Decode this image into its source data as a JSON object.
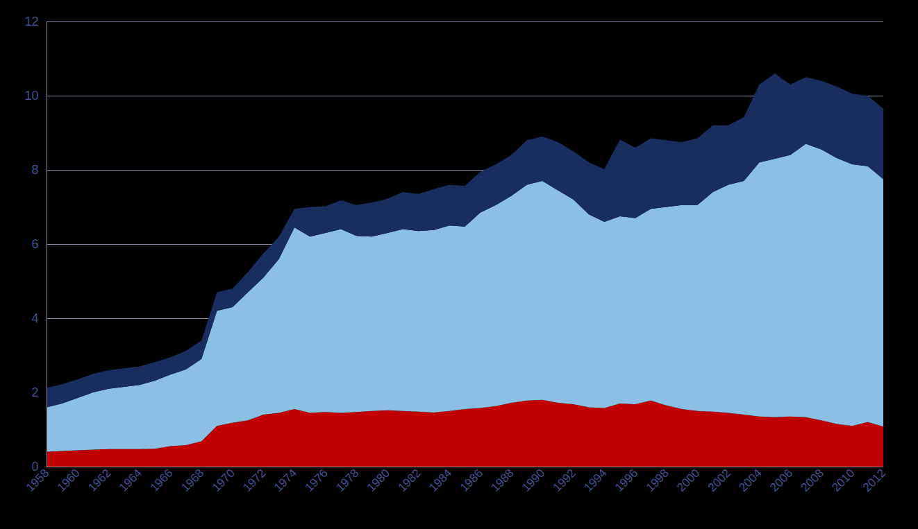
{
  "chart_data": {
    "type": "area",
    "stacked": true,
    "x": [
      1958,
      1959,
      1960,
      1961,
      1962,
      1963,
      1964,
      1965,
      1966,
      1967,
      1968,
      1969,
      1970,
      1971,
      1972,
      1973,
      1974,
      1975,
      1976,
      1977,
      1978,
      1979,
      1980,
      1981,
      1982,
      1983,
      1984,
      1985,
      1986,
      1987,
      1988,
      1989,
      1990,
      1991,
      1992,
      1993,
      1994,
      1995,
      1996,
      1997,
      1998,
      1999,
      2000,
      2001,
      2002,
      2003,
      2004,
      2005,
      2006,
      2007,
      2008,
      2009,
      2010,
      2011,
      2012
    ],
    "series": [
      {
        "color": "#c00000",
        "values": [
          0.4,
          0.42,
          0.44,
          0.46,
          0.47,
          0.47,
          0.47,
          0.48,
          0.55,
          0.58,
          0.68,
          1.1,
          1.18,
          1.25,
          1.4,
          1.45,
          1.55,
          1.45,
          1.47,
          1.45,
          1.47,
          1.5,
          1.52,
          1.5,
          1.48,
          1.46,
          1.5,
          1.55,
          1.58,
          1.63,
          1.72,
          1.78,
          1.8,
          1.72,
          1.68,
          1.6,
          1.58,
          1.7,
          1.68,
          1.78,
          1.65,
          1.55,
          1.5,
          1.48,
          1.45,
          1.4,
          1.35,
          1.33,
          1.35,
          1.33,
          1.25,
          1.15,
          1.1,
          1.2,
          1.08
        ]
      },
      {
        "color": "#8bc0e4",
        "values": [
          1.2,
          1.28,
          1.41,
          1.54,
          1.63,
          1.68,
          1.73,
          1.84,
          1.93,
          2.04,
          2.22,
          3.1,
          3.12,
          3.45,
          3.7,
          4.15,
          4.9,
          4.75,
          4.83,
          4.95,
          4.75,
          4.7,
          4.78,
          4.9,
          4.87,
          4.92,
          5.0,
          4.92,
          5.27,
          5.42,
          5.58,
          5.82,
          5.9,
          5.73,
          5.52,
          5.2,
          5.02,
          5.05,
          5.02,
          5.17,
          5.35,
          5.5,
          5.55,
          5.92,
          6.15,
          6.3,
          6.85,
          6.97,
          7.05,
          7.37,
          7.3,
          7.17,
          7.05,
          6.9,
          6.67
        ]
      },
      {
        "color": "#1a2d5f",
        "values": [
          0.52,
          0.52,
          0.5,
          0.5,
          0.5,
          0.5,
          0.5,
          0.5,
          0.47,
          0.5,
          0.5,
          0.5,
          0.5,
          0.55,
          0.65,
          0.6,
          0.5,
          0.8,
          0.72,
          0.78,
          0.83,
          0.92,
          0.92,
          1.0,
          1.0,
          1.1,
          1.1,
          1.1,
          1.1,
          1.1,
          1.1,
          1.2,
          1.2,
          1.3,
          1.3,
          1.4,
          1.42,
          2.07,
          1.9,
          1.9,
          1.8,
          1.7,
          1.8,
          1.8,
          1.6,
          1.72,
          2.1,
          2.3,
          1.9,
          1.8,
          1.85,
          1.93,
          1.9,
          1.9,
          1.9
        ]
      }
    ],
    "xlim": [
      1958,
      2012
    ],
    "xticks": [
      1958,
      1960,
      1962,
      1964,
      1966,
      1968,
      1970,
      1972,
      1974,
      1976,
      1978,
      1980,
      1982,
      1984,
      1986,
      1988,
      1990,
      1992,
      1994,
      1996,
      1998,
      2000,
      2002,
      2004,
      2006,
      2008,
      2010,
      2012
    ],
    "ylim": [
      0,
      12
    ],
    "yticks": [
      0,
      2,
      4,
      6,
      8,
      10,
      12
    ],
    "grid": true
  }
}
